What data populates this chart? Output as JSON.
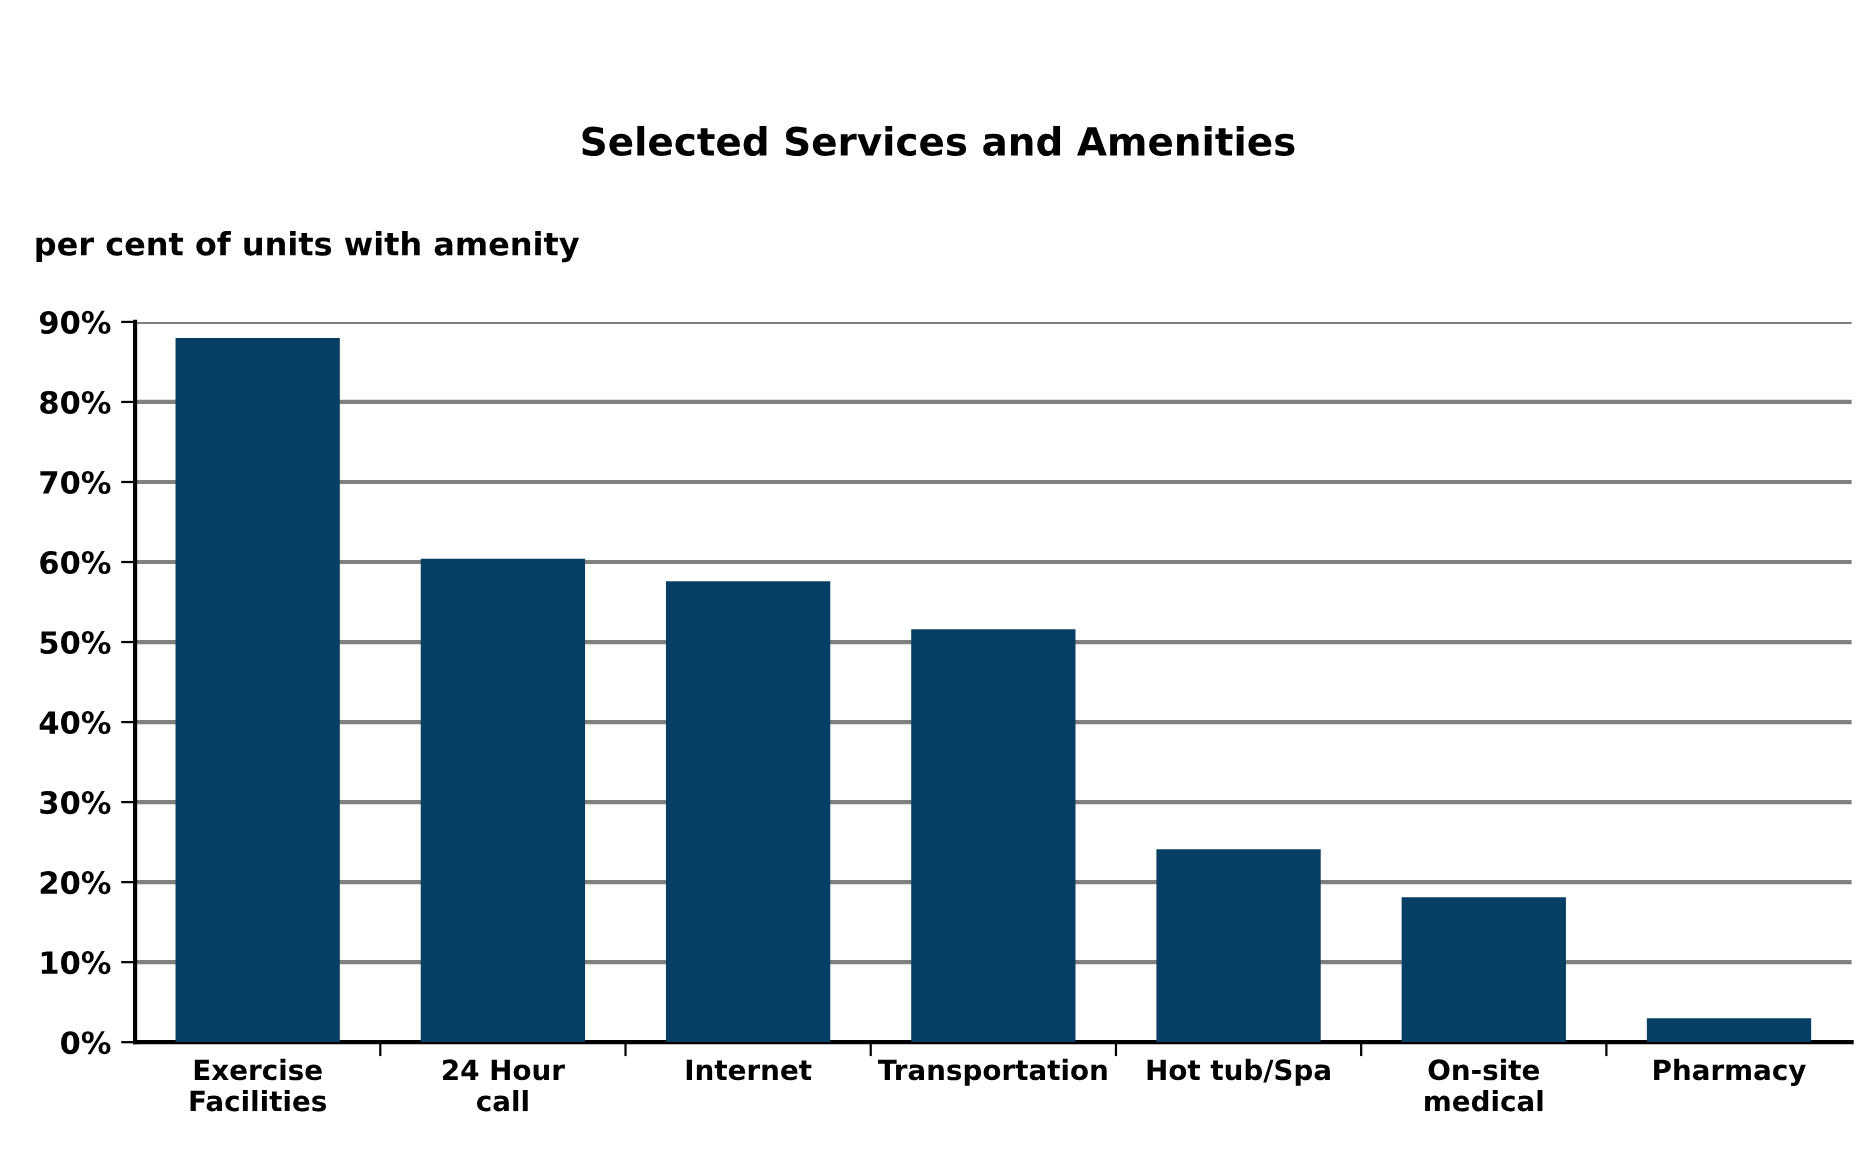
{
  "chart_data": {
    "type": "bar",
    "title": "Selected Services and Amenities",
    "ylabel": "per cent of units with amenity",
    "categories": [
      "Exercise\nFacilities",
      "24 Hour\ncall",
      "Internet",
      "Transportation",
      "Hot tub/Spa",
      "On-site\nmedical",
      "Pharmacy"
    ],
    "values": [
      88.0,
      60.4,
      57.6,
      51.6,
      24.1,
      18.1,
      3.0
    ],
    "color": "#063f63",
    "ylim": [
      0,
      90
    ],
    "yticks": [
      {
        "value": 0,
        "label": "0%"
      },
      {
        "value": 10,
        "label": "10%"
      },
      {
        "value": 20,
        "label": "20%"
      },
      {
        "value": 30,
        "label": "30%"
      },
      {
        "value": 40,
        "label": "40%"
      },
      {
        "value": 50,
        "label": "50%"
      },
      {
        "value": 60,
        "label": "60%"
      },
      {
        "value": 70,
        "label": "70%"
      },
      {
        "value": 80,
        "label": "80%"
      },
      {
        "value": 90,
        "label": "90%"
      }
    ],
    "grid": "y"
  }
}
